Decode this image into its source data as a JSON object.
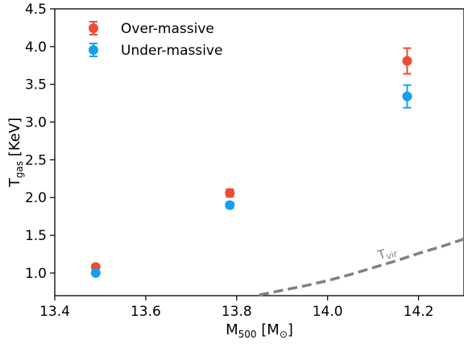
{
  "chart_data": {
    "type": "scatter",
    "x_axis": {
      "base": "M",
      "sub": "500",
      "unit": "M",
      "unit_sub": "⊙",
      "lim": [
        13.4,
        14.3
      ],
      "ticks": [
        13.4,
        13.6,
        13.8,
        14.0,
        14.2
      ],
      "tick_labels": [
        "13.4",
        "13.6",
        "13.8",
        "14.0",
        "14.2"
      ]
    },
    "y_axis": {
      "base": "T",
      "sub": "gas",
      "unit": "KeV",
      "lim": [
        0.7,
        4.5
      ],
      "ticks": [
        1.0,
        1.5,
        2.0,
        2.5,
        3.0,
        3.5,
        4.0,
        4.5
      ],
      "tick_labels": [
        "1.0",
        "1.5",
        "2.0",
        "2.5",
        "3.0",
        "3.5",
        "4.0",
        "4.5"
      ]
    },
    "series": [
      {
        "name": "Over-massive",
        "color": "#ee4b32",
        "points": [
          {
            "x": 13.49,
            "y": 1.08,
            "err": 0.02
          },
          {
            "x": 13.785,
            "y": 2.06,
            "err": 0.05
          },
          {
            "x": 14.175,
            "y": 3.81,
            "err": 0.17
          }
        ]
      },
      {
        "name": "Under-massive",
        "color": "#14a0f0",
        "points": [
          {
            "x": 13.49,
            "y": 1.0,
            "err": 0.02
          },
          {
            "x": 13.785,
            "y": 1.9,
            "err": 0.04
          },
          {
            "x": 14.175,
            "y": 3.34,
            "err": 0.15
          }
        ]
      }
    ],
    "reference_curve": {
      "label_base": "T",
      "label_sub": "vir",
      "color": "#808080",
      "style": "dashed",
      "points": [
        [
          13.85,
          0.71
        ],
        [
          13.9,
          0.77
        ],
        [
          13.95,
          0.83
        ],
        [
          14.0,
          0.9
        ],
        [
          14.05,
          0.98
        ],
        [
          14.1,
          1.07
        ],
        [
          14.15,
          1.16
        ],
        [
          14.2,
          1.26
        ],
        [
          14.25,
          1.35
        ],
        [
          14.3,
          1.45
        ]
      ]
    },
    "legend": {
      "placement": "top-left"
    },
    "grid": false
  }
}
